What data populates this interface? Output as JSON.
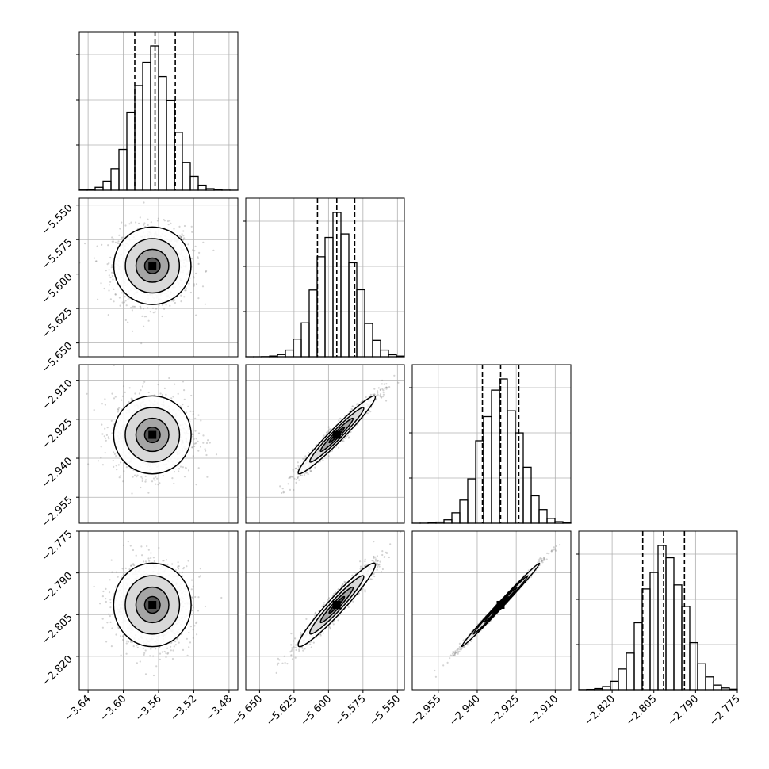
{
  "chart_data": {
    "type": "corner",
    "panels": 4,
    "quantile_lines": true,
    "grid": true,
    "colors": {
      "hist": "#000000",
      "quantile": "#000000",
      "scatter": "#808080",
      "grid": "#b0b0b0"
    },
    "params": [
      {
        "range": [
          -3.65,
          -3.47
        ],
        "ticks": [
          -3.64,
          -3.6,
          -3.56,
          -3.52,
          -3.48
        ],
        "tick_labels": [
          "−3.64",
          "−3.60",
          "−3.56",
          "−3.52",
          "−3.48"
        ],
        "mean": -3.567,
        "sd": 0.022,
        "quantiles": [
          -3.587,
          -3.564,
          -3.541
        ]
      },
      {
        "range": [
          -5.66,
          -5.545
        ],
        "ticks": [
          -5.65,
          -5.625,
          -5.6,
          -5.575,
          -5.55
        ],
        "tick_labels": [
          "−5.650",
          "−5.625",
          "−5.600",
          "−5.575",
          "−5.550"
        ],
        "mean": -5.594,
        "sd": 0.014,
        "quantiles": [
          -5.608,
          -5.594,
          -5.581
        ]
      },
      {
        "range": [
          -2.965,
          -2.904
        ],
        "ticks": [
          -2.955,
          -2.94,
          -2.925,
          -2.91
        ],
        "tick_labels": [
          "−2.955",
          "−2.940",
          "−2.925",
          "−2.910"
        ],
        "mean": -2.931,
        "sd": 0.0075,
        "quantiles": [
          -2.938,
          -2.931,
          -2.924
        ]
      },
      {
        "range": [
          -2.832,
          -2.775
        ],
        "ticks": [
          -2.82,
          -2.805,
          -2.79,
          -2.775
        ],
        "tick_labels": [
          "−2.820",
          "−2.805",
          "−2.790",
          "−2.775"
        ],
        "mean": -2.8015,
        "sd": 0.0075,
        "quantiles": [
          -2.809,
          -2.8015,
          -2.794
        ]
      }
    ],
    "correlations": [
      [
        1.0,
        0.0,
        0.0,
        0.0
      ],
      [
        0.0,
        1.0,
        0.97,
        0.96
      ],
      [
        0.0,
        0.97,
        1.0,
        0.995
      ],
      [
        0.0,
        0.96,
        0.995,
        1.0
      ]
    ]
  }
}
